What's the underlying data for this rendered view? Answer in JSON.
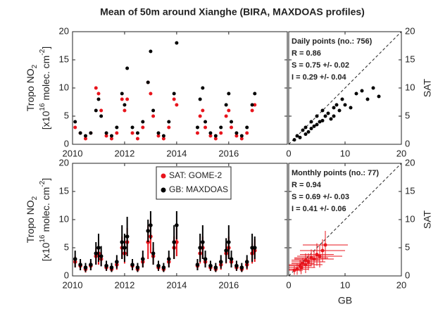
{
  "title": "Mean of 50m around Xianghe (BIRA, MAXDOAS profiles)",
  "chart_data": [
    {
      "type": "timeseries",
      "x": [
        2010.1,
        2010.3,
        2010.5,
        2010.7,
        2010.9,
        2011.0,
        2011.1,
        2011.3,
        2011.5,
        2011.7,
        2011.9,
        2012.0,
        2012.1,
        2012.3,
        2012.5,
        2012.7,
        2012.9,
        2013.0,
        2013.1,
        2013.3,
        2013.5,
        2013.7,
        2013.9,
        2014.0,
        2014.8,
        2014.9,
        2015.0,
        2015.1,
        2015.3,
        2015.5,
        2015.7,
        2015.9,
        2016.0,
        2016.1,
        2016.3,
        2016.5,
        2016.7,
        2016.9,
        2017.0
      ],
      "series": [
        {
          "color": "#e8141c",
          "values": [
            3,
            2,
            1,
            2,
            10,
            9,
            6,
            1.5,
            1,
            2,
            8,
            6,
            8,
            2,
            1,
            3,
            11,
            9,
            5,
            1.5,
            1,
            3,
            8,
            7,
            2,
            5,
            6,
            3,
            1.5,
            1,
            2,
            5,
            6,
            3,
            1.5,
            1,
            2,
            6,
            7
          ]
        },
        {
          "color": "#000000",
          "values": [
            4,
            2,
            1.5,
            2,
            6,
            8,
            5,
            2,
            1.5,
            3,
            9,
            7,
            13.5,
            3,
            2,
            4,
            11,
            16.5,
            6,
            2,
            1.5,
            4,
            9,
            18,
            3,
            8,
            10,
            4,
            2,
            1.5,
            3,
            7,
            9,
            4,
            2,
            1.5,
            3,
            7,
            9
          ]
        }
      ],
      "xlim": [
        2010,
        2018.25
      ],
      "xticks": [
        2010,
        2012,
        2014,
        2016
      ],
      "ylim": [
        0,
        20
      ],
      "yticks": [
        0,
        5,
        10,
        15,
        20
      ],
      "ylabel": {
        "line1": "Tropo NO",
        "line1_sub": "2",
        "line2": "[x10",
        "line2_sup": "16",
        "line2_mid": "molec. cm",
        "line2_sup2": "-2",
        "line2_end": "]"
      }
    },
    {
      "type": "scatter",
      "x": [
        1,
        1.5,
        2,
        2.5,
        3,
        3,
        3.5,
        4,
        4,
        4.5,
        5,
        5,
        5.5,
        6,
        6,
        6.5,
        7,
        7.5,
        8,
        8,
        8.5,
        9,
        9.5,
        10,
        11,
        12,
        13,
        14,
        15,
        16
      ],
      "values": [
        0.8,
        1.5,
        1.2,
        2.5,
        1.8,
        3,
        2.2,
        2.8,
        4,
        3.2,
        3.5,
        5,
        4,
        4.2,
        6,
        5,
        5.5,
        4.5,
        6.5,
        5,
        7,
        6,
        8,
        7,
        6.5,
        9,
        9.5,
        8,
        10,
        8.5
      ],
      "color": "#000000",
      "xlim": [
        0,
        20
      ],
      "xticks": [
        0,
        10,
        20
      ],
      "ylim": [
        0,
        20
      ],
      "yticks": [
        0,
        5,
        10,
        15,
        20
      ],
      "ylabel": "SAT",
      "annotations": [
        "Daily points (no.: 756)",
        "R = 0.86",
        "S = 0.75 +/- 0.02",
        "I = 0.29 +/- 0.04"
      ]
    },
    {
      "type": "timeseries_err",
      "x": [
        2010.1,
        2010.3,
        2010.5,
        2010.7,
        2010.9,
        2011.0,
        2011.1,
        2011.3,
        2011.5,
        2011.7,
        2011.9,
        2012.0,
        2012.1,
        2012.3,
        2012.5,
        2012.7,
        2012.9,
        2013.0,
        2013.1,
        2013.3,
        2013.5,
        2013.7,
        2013.9,
        2014.0,
        2014.8,
        2014.9,
        2015.0,
        2015.1,
        2015.3,
        2015.5,
        2015.7,
        2015.9,
        2016.0,
        2016.1,
        2016.3,
        2016.5,
        2016.7,
        2016.9,
        2017.0
      ],
      "series": [
        {
          "name": "SAT: GOME-2",
          "color": "#e8141c",
          "values": [
            2.5,
            1.8,
            1.2,
            1.8,
            3.5,
            4,
            3,
            1.5,
            1.2,
            2,
            5,
            4,
            6,
            1.8,
            1.2,
            2.5,
            6,
            7,
            3.5,
            1.5,
            1.2,
            2.5,
            5,
            6,
            1.8,
            4,
            5,
            2.5,
            1.5,
            1.2,
            2,
            4,
            5,
            2.5,
            1.5,
            1.2,
            2,
            4,
            4.5
          ],
          "errors": [
            1,
            0.8,
            0.6,
            0.8,
            1.5,
            2,
            1.2,
            0.6,
            0.5,
            0.9,
            2,
            1.8,
            2.5,
            0.8,
            0.5,
            1,
            3,
            3,
            1.5,
            0.6,
            0.5,
            1,
            2,
            2.5,
            0.8,
            1.8,
            2,
            1,
            0.6,
            0.5,
            0.9,
            1.8,
            2,
            1,
            0.6,
            0.5,
            0.9,
            1.8,
            2
          ]
        },
        {
          "name": "GB: MAXDOAS",
          "color": "#000000",
          "values": [
            3,
            2,
            1.5,
            2,
            4,
            5,
            3.5,
            1.8,
            1.5,
            2.5,
            6,
            5,
            7,
            2,
            1.5,
            3,
            8,
            9,
            4,
            1.8,
            1.5,
            3,
            6,
            9,
            2,
            5,
            6,
            3,
            1.8,
            1.5,
            2.5,
            4.5,
            6,
            3,
            1.8,
            1.5,
            2.5,
            5,
            5
          ],
          "errors": [
            1.5,
            1,
            0.8,
            1,
            2,
            2.5,
            1.8,
            0.9,
            0.8,
            1.2,
            3,
            2.5,
            3.5,
            1,
            0.8,
            1.5,
            2,
            2.5,
            2,
            0.9,
            0.8,
            1.5,
            3,
            2.5,
            1,
            2.5,
            3,
            1.5,
            0.9,
            0.8,
            1.2,
            2.2,
            3,
            1.5,
            0.9,
            0.8,
            1.2,
            2.5,
            2
          ]
        }
      ],
      "xlim": [
        2010,
        2018.25
      ],
      "xticks": [
        2010,
        2012,
        2014,
        2016
      ],
      "ylim": [
        0,
        20
      ],
      "yticks": [
        0,
        5,
        10,
        15,
        20
      ],
      "ylabel": {
        "line1": "Tropo NO",
        "line1_sub": "2",
        "line2": "[x10",
        "line2_sup": "16",
        "line2_mid": "molec. cm",
        "line2_sup2": "-2",
        "line2_end": "]"
      }
    },
    {
      "type": "scatter_err",
      "x": [
        1,
        1.5,
        2,
        2.2,
        2.5,
        3,
        3,
        3.5,
        4,
        4.5,
        5,
        5.5,
        6,
        6.5
      ],
      "values": [
        1,
        1.2,
        1.8,
        1.5,
        2.2,
        2,
        2.8,
        2.5,
        3.2,
        3,
        3.8,
        3.5,
        4.5,
        5.5
      ],
      "xerr": [
        1.5,
        2,
        2,
        2.5,
        2,
        3,
        2.5,
        3,
        3,
        3.5,
        3,
        4,
        4,
        4
      ],
      "yerr": [
        0.8,
        1,
        1,
        1.2,
        1,
        1.5,
        1.2,
        1.5,
        1.5,
        1.5,
        2,
        2,
        2,
        2.5
      ],
      "color": "#e8141c",
      "xlim": [
        0,
        20
      ],
      "xticks": [
        0,
        10,
        20
      ],
      "ylim": [
        0,
        20
      ],
      "yticks": [
        0,
        5,
        10,
        15,
        20
      ],
      "xlabel": "GB",
      "ylabel": "SAT",
      "annotations": [
        "Monthly points (no.: 77)",
        "R = 0.94",
        "S = 0.69 +/- 0.03",
        "I = 0.41 +/- 0.06"
      ]
    }
  ]
}
